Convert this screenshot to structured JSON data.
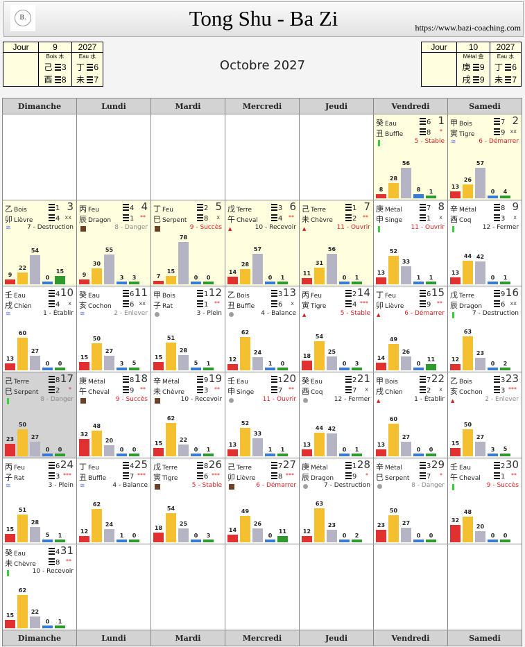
{
  "header": {
    "title": "Tong Shu - Ba Zi",
    "url": "https://www.bazi-coaching.com",
    "logo_text": "B."
  },
  "month_title": "Octobre 2027",
  "left_panel": {
    "h": [
      "Jour",
      "9",
      "2027"
    ],
    "m_el": "Bois 木",
    "m_stem": "己",
    "m_h1": "3",
    "m_branch": "酉",
    "m_h2": "8",
    "y_el": "Eau 水",
    "y_stem": "丁",
    "y_h1": "6",
    "y_branch": "未",
    "y_h2": "7"
  },
  "right_panel": {
    "h": [
      "Jour",
      "10",
      "2027"
    ],
    "m_el": "Métal 金",
    "m_stem": "庚",
    "m_h1": "9",
    "m_branch": "戌",
    "m_h2": "9",
    "y_el": "Eau 水",
    "y_stem": "丁",
    "y_h1": "6",
    "y_branch": "未",
    "y_h2": "7"
  },
  "weekdays": [
    "Dimanche",
    "Lundi",
    "Mardi",
    "Mercredi",
    "Jeudi",
    "Vendredi",
    "Samedi"
  ],
  "first_weekday": 5,
  "colors": {
    "red": "#e03030",
    "yellow": "#f5c030",
    "gray": "#b4b4c4",
    "blue": "#3a7ad0",
    "green": "#2e9a2e",
    "officer_red": "#e02020",
    "officer_gray": "#888888",
    "officer_dark": "#222222"
  },
  "days": [
    {
      "d": "1",
      "s": "癸",
      "e": "Eau",
      "b": "丑",
      "a": "Buffle",
      "h1": "6",
      "h2": "8",
      "sc": "*",
      "ind": "green",
      "off": "5 - Stable",
      "oc": "red",
      "bars": [
        8,
        28,
        56,
        8,
        1
      ],
      "bg": "hl"
    },
    {
      "d": "2",
      "s": "甲",
      "e": "Bois",
      "b": "寅",
      "a": "Tigre",
      "h1": "7",
      "h2": "9",
      "sc": "xx",
      "ind": "wave",
      "off": "6 - Démarrer",
      "oc": "red",
      "bars": [
        13,
        26,
        57,
        0,
        4
      ],
      "bg": "hl"
    },
    {
      "d": "3",
      "s": "乙",
      "e": "Bois",
      "b": "卯",
      "a": "Lièvre",
      "h1": "1",
      "h2": "4",
      "sc": "xx",
      "ind": "wave",
      "off": "7 - Destruction",
      "oc": "dark",
      "bars": [
        9,
        22,
        54,
        0,
        15
      ],
      "bg": "hl"
    },
    {
      "d": "4",
      "s": "丙",
      "e": "Feu",
      "b": "辰",
      "a": "Dragon",
      "h1": "4",
      "h2": "1",
      "sc": "**",
      "ind": "brown",
      "off": "8 - Danger",
      "oc": "gray",
      "bars": [
        9,
        30,
        55,
        3,
        3
      ],
      "bg": "hl"
    },
    {
      "d": "5",
      "s": "丁",
      "e": "Feu",
      "b": "巳",
      "a": "Serpent",
      "h1": "2",
      "h2": "8",
      "sc": "x",
      "ind": "brown",
      "off": "9 - Succès",
      "oc": "red",
      "bars": [
        7,
        15,
        78,
        0,
        0
      ],
      "bg": "hl"
    },
    {
      "d": "6",
      "s": "戊",
      "e": "Terre",
      "b": "午",
      "a": "Cheval",
      "h1": "3",
      "h2": "4",
      "sc": "**",
      "ind": "triangle",
      "off": "10 - Recevoir",
      "oc": "dark",
      "bars": [
        14,
        28,
        57,
        0,
        1
      ],
      "bg": "hl"
    },
    {
      "d": "7",
      "s": "己",
      "e": "Terre",
      "b": "未",
      "a": "Chèvre",
      "h1": "1",
      "h2": "2",
      "sc": "**",
      "ind": "triangle",
      "off": "11 - Ouvrir",
      "oc": "red",
      "bars": [
        11,
        31,
        56,
        0,
        1
      ],
      "bg": "hl"
    },
    {
      "d": "8",
      "s": "庚",
      "e": "Métal",
      "b": "申",
      "a": "Singe",
      "h1": "7",
      "h2": "1",
      "sc": "x",
      "ind": "green",
      "off": "11 - Ouvrir",
      "oc": "red",
      "bars": [
        13,
        52,
        33,
        1,
        1
      ],
      "bg": ""
    },
    {
      "d": "9",
      "s": "辛",
      "e": "Métal",
      "b": "酉",
      "a": "Coq",
      "h1": "8",
      "h2": "3",
      "sc": "x",
      "ind": "green",
      "off": "12 - Fermer",
      "oc": "dark",
      "bars": [
        13,
        44,
        42,
        0,
        1
      ],
      "bg": ""
    },
    {
      "d": "10",
      "s": "壬",
      "e": "Eau",
      "b": "戌",
      "a": "Chien",
      "h1": "4",
      "h2": "4",
      "sc": "x",
      "ind": "wave",
      "off": "1 - Établir",
      "oc": "dark",
      "bars": [
        13,
        60,
        27,
        0,
        0
      ],
      "bg": ""
    },
    {
      "d": "11",
      "s": "癸",
      "e": "Eau",
      "b": "亥",
      "a": "Cochon",
      "h1": "6",
      "h2": "6",
      "sc": "xx",
      "ind": "wave",
      "off": "2 - Enlever",
      "oc": "gray",
      "bars": [
        15,
        50,
        27,
        3,
        5
      ],
      "bg": ""
    },
    {
      "d": "12",
      "s": "甲",
      "e": "Bois",
      "b": "子",
      "a": "Rat",
      "h1": "1",
      "h2": "1",
      "sc": "**",
      "ind": "circle",
      "off": "3 - Plein",
      "oc": "dark",
      "bars": [
        15,
        51,
        28,
        5,
        1
      ],
      "bg": ""
    },
    {
      "d": "13",
      "s": "乙",
      "e": "Bois",
      "b": "丑",
      "a": "Buffle",
      "h1": "3",
      "h2": "6",
      "sc": "x",
      "ind": "circle",
      "off": "4 - Balance",
      "oc": "dark",
      "bars": [
        12,
        62,
        24,
        1,
        0
      ],
      "bg": ""
    },
    {
      "d": "14",
      "s": "丙",
      "e": "Feu",
      "b": "寅",
      "a": "Tigre",
      "h1": "2",
      "h2": "4",
      "sc": "***",
      "ind": "triangle",
      "off": "5 - Stable",
      "oc": "red",
      "bars": [
        18,
        54,
        25,
        0,
        3
      ],
      "bg": ""
    },
    {
      "d": "15",
      "s": "丁",
      "e": "Feu",
      "b": "卯",
      "a": "Lièvre",
      "h1": "6",
      "h2": "9",
      "sc": "**",
      "ind": "triangle",
      "off": "6 - Démarrer",
      "oc": "red",
      "bars": [
        14,
        49,
        26,
        0,
        11
      ],
      "bg": ""
    },
    {
      "d": "16",
      "s": "戊",
      "e": "Terre",
      "b": "辰",
      "a": "Dragon",
      "h1": "9",
      "h2": "6",
      "sc": "xx",
      "ind": "green",
      "off": "7 - Destruction",
      "oc": "dark",
      "bars": [
        12,
        63,
        23,
        0,
        2
      ],
      "bg": ""
    },
    {
      "d": "17",
      "s": "己",
      "e": "Terre",
      "b": "巳",
      "a": "Serpent",
      "h1": "8",
      "h2": "2",
      "sc": "*",
      "ind": "green",
      "off": "8 - Danger",
      "oc": "gray",
      "bars": [
        23,
        50,
        27,
        0,
        0
      ],
      "bg": "today"
    },
    {
      "d": "18",
      "s": "庚",
      "e": "Métal",
      "b": "午",
      "a": "Cheval",
      "h1": "8",
      "h2": "9",
      "sc": "**",
      "ind": "brown",
      "off": "9 - Succès",
      "oc": "red",
      "bars": [
        32,
        48,
        20,
        0,
        0
      ],
      "bg": ""
    },
    {
      "d": "19",
      "s": "辛",
      "e": "Métal",
      "b": "未",
      "a": "Chèvre",
      "h1": "9",
      "h2": "3",
      "sc": "**",
      "ind": "brown",
      "off": "10 - Recevoir",
      "oc": "dark",
      "bars": [
        15,
        62,
        22,
        0,
        1
      ],
      "bg": ""
    },
    {
      "d": "20",
      "s": "壬",
      "e": "Eau",
      "b": "申",
      "a": "Singe",
      "h1": "1",
      "h2": "7",
      "sc": "**",
      "ind": "circle",
      "off": "11 - Ouvrir",
      "oc": "red",
      "bars": [
        13,
        52,
        33,
        1,
        1
      ],
      "bg": ""
    },
    {
      "d": "21",
      "s": "癸",
      "e": "Eau",
      "b": "酉",
      "a": "Coq",
      "h1": "2",
      "h2": "7",
      "sc": "x",
      "ind": "circle",
      "off": "12 - Fermer",
      "oc": "dark",
      "bars": [
        13,
        44,
        42,
        0,
        1
      ],
      "bg": ""
    },
    {
      "d": "22",
      "s": "甲",
      "e": "Bois",
      "b": "戌",
      "a": "Chien",
      "h1": "7",
      "h2": "2",
      "sc": "x",
      "ind": "triangle",
      "off": "1 - Établir",
      "oc": "dark",
      "bars": [
        13,
        60,
        27,
        0,
        0
      ],
      "bg": ""
    },
    {
      "d": "23",
      "s": "乙",
      "e": "Bois",
      "b": "亥",
      "a": "Cochon",
      "h1": "3",
      "h2": "3",
      "sc": "***",
      "ind": "triangle",
      "off": "2 - Enlever",
      "oc": "gray",
      "bars": [
        15,
        50,
        27,
        3,
        5
      ],
      "bg": ""
    },
    {
      "d": "24",
      "s": "丙",
      "e": "Feu",
      "b": "子",
      "a": "Rat",
      "h1": "6",
      "h2": "3",
      "sc": "***",
      "ind": "wave",
      "off": "3 - Plein",
      "oc": "dark",
      "bars": [
        15,
        51,
        28,
        5,
        1
      ],
      "bg": ""
    },
    {
      "d": "25",
      "s": "丁",
      "e": "Feu",
      "b": "丑",
      "a": "Buffle",
      "h1": "4",
      "h2": "7",
      "sc": "***",
      "ind": "wave",
      "off": "4 - Balance",
      "oc": "dark",
      "bars": [
        12,
        62,
        24,
        1,
        0
      ],
      "bg": ""
    },
    {
      "d": "26",
      "s": "戊",
      "e": "Terre",
      "b": "寅",
      "a": "Tigre",
      "h1": "8",
      "h2": "6",
      "sc": "***",
      "ind": "brown",
      "off": "5 - Stable",
      "oc": "red",
      "bars": [
        18,
        54,
        25,
        0,
        3
      ],
      "bg": ""
    },
    {
      "d": "27",
      "s": "己",
      "e": "Terre",
      "b": "卯",
      "a": "Lièvre",
      "h1": "7",
      "h2": "8",
      "sc": "***",
      "ind": "brown",
      "off": "6 - Démarrer",
      "oc": "red",
      "bars": [
        14,
        49,
        26,
        0,
        11
      ],
      "bg": ""
    },
    {
      "d": "28",
      "s": "庚",
      "e": "Métal",
      "b": "辰",
      "a": "Dragon",
      "h1": "1",
      "h2": "9",
      "sc": "*",
      "ind": "circle",
      "off": "7 - Destruction",
      "oc": "dark",
      "bars": [
        12,
        63,
        23,
        0,
        2
      ],
      "bg": ""
    },
    {
      "d": "29",
      "s": "辛",
      "e": "Métal",
      "b": "巳",
      "a": "Serpent",
      "h1": "3",
      "h2": "7",
      "sc": "*",
      "ind": "circle",
      "off": "8 - Danger",
      "oc": "gray",
      "bars": [
        23,
        50,
        27,
        0,
        0
      ],
      "bg": ""
    },
    {
      "d": "30",
      "s": "壬",
      "e": "Eau",
      "b": "午",
      "a": "Cheval",
      "h1": "2",
      "h2": "1",
      "sc": "**",
      "ind": "green",
      "off": "9 - Succès",
      "oc": "red",
      "bars": [
        32,
        48,
        20,
        0,
        0
      ],
      "bg": ""
    },
    {
      "d": "31",
      "s": "癸",
      "e": "Eau",
      "b": "未",
      "a": "Chèvre",
      "h1": "4",
      "h2": "8",
      "sc": "**",
      "ind": "green",
      "off": "10 - Recevoir",
      "oc": "dark",
      "bars": [
        15,
        62,
        22,
        0,
        1
      ],
      "bg": ""
    }
  ]
}
